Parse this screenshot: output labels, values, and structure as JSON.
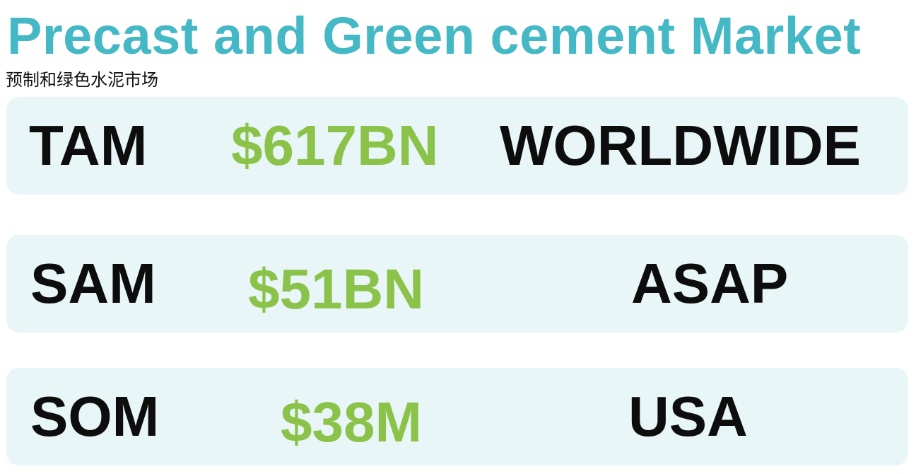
{
  "header": {
    "title": "Precast and Green cement Market",
    "subtitle": "预制和绿色水泥市场"
  },
  "colors": {
    "title": "#44b8c5",
    "value": "#8bc34a",
    "label": "#0d0d0d",
    "row_background": "#e8f6f7"
  },
  "rows": [
    {
      "label": "TAM",
      "value": "$617BN",
      "scope": "WORLDWIDE"
    },
    {
      "label": "SAM",
      "value": "$51BN",
      "scope": "ASAP"
    },
    {
      "label": "SOM",
      "value": "$38M",
      "scope": "USA"
    }
  ]
}
